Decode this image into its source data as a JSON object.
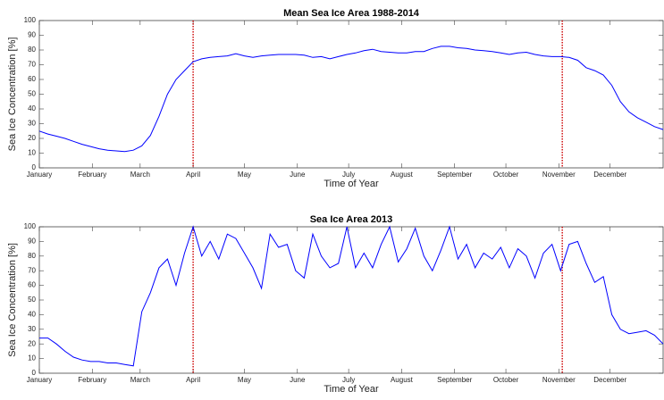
{
  "chart_data": [
    {
      "type": "line",
      "title": "Mean Sea Ice Area 1988-2014",
      "xlabel": "Time of Year",
      "ylabel": "Sea Ice Concentration [%]",
      "color": "#0000ff",
      "vline_color": "#cc0000",
      "xlim": [
        0,
        365
      ],
      "ylim": [
        0,
        100
      ],
      "xticks": [
        {
          "value": 0,
          "label": "January"
        },
        {
          "value": 31,
          "label": "February"
        },
        {
          "value": 59,
          "label": "March"
        },
        {
          "value": 90,
          "label": "April"
        },
        {
          "value": 120,
          "label": "May"
        },
        {
          "value": 151,
          "label": "June"
        },
        {
          "value": 181,
          "label": "July"
        },
        {
          "value": 212,
          "label": "August"
        },
        {
          "value": 243,
          "label": "September"
        },
        {
          "value": 273,
          "label": "October"
        },
        {
          "value": 304,
          "label": "November"
        },
        {
          "value": 334,
          "label": "December"
        }
      ],
      "yticks": [
        0,
        10,
        20,
        30,
        40,
        50,
        60,
        70,
        80,
        90,
        100
      ],
      "vlines": [
        90,
        306
      ],
      "x": [
        0,
        5,
        10,
        15,
        20,
        25,
        30,
        35,
        40,
        45,
        50,
        55,
        60,
        65,
        70,
        75,
        80,
        85,
        90,
        95,
        100,
        105,
        110,
        115,
        120,
        125,
        130,
        135,
        140,
        145,
        150,
        155,
        160,
        165,
        170,
        175,
        180,
        185,
        190,
        195,
        200,
        205,
        210,
        215,
        220,
        225,
        230,
        235,
        240,
        245,
        250,
        255,
        260,
        265,
        270,
        275,
        280,
        285,
        290,
        295,
        300,
        305,
        310,
        315,
        320,
        325,
        330,
        335,
        340,
        345,
        350,
        355,
        360,
        365
      ],
      "values": [
        25,
        23,
        21.5,
        20,
        18,
        16,
        14.5,
        13,
        12,
        11.5,
        11,
        12,
        15,
        22,
        35,
        50,
        60,
        66,
        72,
        74,
        75,
        75.5,
        76,
        77.5,
        76,
        75,
        76,
        76.5,
        77,
        77,
        77,
        76.5,
        75,
        75.5,
        74,
        75.5,
        77,
        78,
        79.5,
        80.5,
        79,
        78.5,
        78,
        78,
        79,
        79,
        81,
        82.5,
        82.5,
        81.5,
        81,
        80,
        79.5,
        79,
        78,
        77,
        78,
        78.5,
        77,
        76,
        75.5,
        75.5,
        75,
        73,
        68,
        66,
        63,
        56,
        45,
        38,
        34,
        31,
        28,
        26
      ]
    },
    {
      "type": "line",
      "title": "Sea Ice Area 2013",
      "xlabel": "Time of Year",
      "ylabel": "Sea Ice Concentration [%]",
      "color": "#0000ff",
      "vline_color": "#cc0000",
      "xlim": [
        0,
        365
      ],
      "ylim": [
        0,
        100
      ],
      "xticks": [
        {
          "value": 0,
          "label": "January"
        },
        {
          "value": 31,
          "label": "February"
        },
        {
          "value": 59,
          "label": "March"
        },
        {
          "value": 90,
          "label": "April"
        },
        {
          "value": 120,
          "label": "May"
        },
        {
          "value": 151,
          "label": "June"
        },
        {
          "value": 181,
          "label": "July"
        },
        {
          "value": 212,
          "label": "August"
        },
        {
          "value": 243,
          "label": "September"
        },
        {
          "value": 273,
          "label": "October"
        },
        {
          "value": 304,
          "label": "November"
        },
        {
          "value": 334,
          "label": "December"
        }
      ],
      "yticks": [
        0,
        10,
        20,
        30,
        40,
        50,
        60,
        70,
        80,
        90,
        100
      ],
      "vlines": [
        90,
        306
      ],
      "x": [
        0,
        5,
        10,
        15,
        20,
        25,
        30,
        35,
        40,
        45,
        50,
        55,
        60,
        65,
        70,
        75,
        80,
        85,
        90,
        95,
        100,
        105,
        110,
        115,
        120,
        125,
        130,
        135,
        140,
        145,
        150,
        155,
        160,
        165,
        170,
        175,
        180,
        185,
        190,
        195,
        200,
        205,
        210,
        215,
        220,
        225,
        230,
        235,
        240,
        245,
        250,
        255,
        260,
        265,
        270,
        275,
        280,
        285,
        290,
        295,
        300,
        305,
        310,
        315,
        320,
        325,
        330,
        335,
        340,
        345,
        350,
        355,
        360,
        365
      ],
      "values": [
        24,
        24,
        20,
        15,
        11,
        9,
        8,
        8,
        7,
        7,
        6,
        5,
        42,
        55,
        72,
        78,
        60,
        82,
        100,
        80,
        90,
        78,
        95,
        92,
        82,
        72,
        58,
        95,
        86,
        88,
        70,
        65,
        95,
        80,
        72,
        75,
        100,
        72,
        82,
        72,
        88,
        100,
        76,
        85,
        99,
        80,
        70,
        84,
        100,
        78,
        88,
        72,
        82,
        78,
        86,
        72,
        85,
        80,
        65,
        82,
        88,
        70,
        88,
        90,
        75,
        62,
        66,
        40,
        30,
        27,
        28,
        29,
        26,
        20
      ]
    }
  ]
}
